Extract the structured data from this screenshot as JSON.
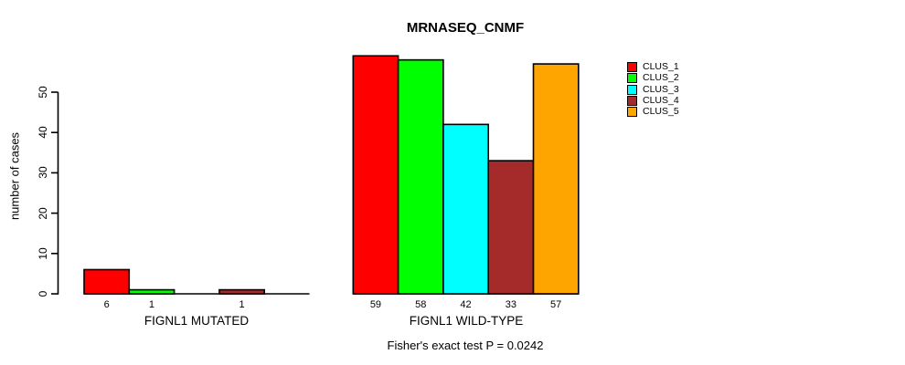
{
  "title": "MRNASEQ_CNMF",
  "footnote": "Fisher's exact test P = 0.0242",
  "colors": {
    "background": "#FFFFFF",
    "axis": "#000000",
    "text": "#000000"
  },
  "chart_data": {
    "type": "bar",
    "title": "MRNASEQ_CNMF",
    "xlabel": "",
    "ylabel": "number of cases",
    "ylim": [
      0,
      59
    ],
    "yticks": [
      0,
      10,
      20,
      30,
      40,
      50
    ],
    "grid": false,
    "legend_position": "right",
    "series_colors": [
      "#FF0000",
      "#00FF00",
      "#00FFFF",
      "#A52A2A",
      "#FFA500"
    ],
    "groups": [
      {
        "label": "FIGNL1 MUTATED",
        "values": [
          6,
          1,
          0,
          1,
          0
        ],
        "bar_labels": [
          "6",
          "1",
          "",
          "1",
          ""
        ]
      },
      {
        "label": "FIGNL1 WILD-TYPE",
        "values": [
          59,
          58,
          42,
          33,
          57
        ],
        "bar_labels": [
          "59",
          "58",
          "42",
          "33",
          "57"
        ]
      }
    ],
    "legend": [
      {
        "label": "CLUS_1",
        "color": "#FF0000"
      },
      {
        "label": "CLUS_2",
        "color": "#00FF00"
      },
      {
        "label": "CLUS_3",
        "color": "#00FFFF"
      },
      {
        "label": "CLUS_4",
        "color": "#A52A2A"
      },
      {
        "label": "CLUS_5",
        "color": "#FFA500"
      }
    ]
  }
}
